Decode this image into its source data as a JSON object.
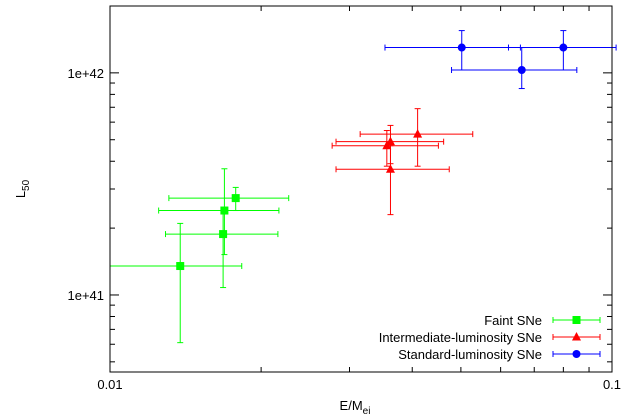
{
  "chart_data": {
    "type": "scatter",
    "x_scale": "log",
    "y_scale": "log",
    "xlim": [
      0.01,
      0.1
    ],
    "ylim": [
      4.5e+40,
      2e+42
    ],
    "x_ticks": [
      {
        "value": 0.01,
        "label": "0.01"
      },
      {
        "value": 0.1,
        "label": "0.1"
      }
    ],
    "y_ticks": [
      {
        "value": 1e+41,
        "label": "1e+41"
      },
      {
        "value": 1e+42,
        "label": "1e+42"
      }
    ],
    "xlabel": {
      "main": "E/M",
      "sub": "ei"
    },
    "ylabel": {
      "main": "L",
      "sub": "50"
    },
    "grid": false,
    "legend_position": "bottom-right",
    "series": [
      {
        "name": "Faint SNe",
        "color": "#00ff00",
        "marker": "square",
        "points": [
          {
            "x": 0.0138,
            "y": 1.35e+41,
            "x_lo": 0.01,
            "x_hi": 0.0183,
            "y_lo": 6.1e+40,
            "y_hi": 2.1e+41
          },
          {
            "x": 0.0168,
            "y": 1.88e+41,
            "x_lo": 0.0129,
            "x_hi": 0.0216,
            "y_lo": 1.08e+41,
            "y_hi": 2.4e+41
          },
          {
            "x": 0.0169,
            "y": 2.4e+41,
            "x_lo": 0.0125,
            "x_hi": 0.0217,
            "y_lo": 1.52e+41,
            "y_hi": 3.7e+41
          },
          {
            "x": 0.0178,
            "y": 2.73e+41,
            "x_lo": 0.0131,
            "x_hi": 0.0227,
            "y_lo": 2.4e+41,
            "y_hi": 3.05e+41
          }
        ]
      },
      {
        "name": "Intermediate-luminosity SNe",
        "color": "#ff0000",
        "marker": "triangle",
        "points": [
          {
            "x": 0.0356,
            "y": 4.7e+41,
            "x_lo": 0.0277,
            "x_hi": 0.0451,
            "y_lo": 3.8e+41,
            "y_hi": 5.5e+41
          },
          {
            "x": 0.0362,
            "y": 4.9e+41,
            "x_lo": 0.0282,
            "x_hi": 0.0462,
            "y_lo": 3.9e+41,
            "y_hi": 5.8e+41
          },
          {
            "x": 0.0362,
            "y": 3.68e+41,
            "x_lo": 0.0282,
            "x_hi": 0.0474,
            "y_lo": 2.3e+41,
            "y_hi": 4.7e+41
          },
          {
            "x": 0.041,
            "y": 5.3e+41,
            "x_lo": 0.0315,
            "x_hi": 0.0528,
            "y_lo": 3.8e+41,
            "y_hi": 6.9e+41
          }
        ]
      },
      {
        "name": "Standard-luminosity SNe",
        "color": "#0000ff",
        "marker": "circle",
        "points": [
          {
            "x": 0.0502,
            "y": 1.3e+42,
            "x_lo": 0.0353,
            "x_hi": 0.0657,
            "y_lo": 1.03e+42,
            "y_hi": 1.55e+42
          },
          {
            "x": 0.0661,
            "y": 1.03e+42,
            "x_lo": 0.0479,
            "x_hi": 0.0851,
            "y_lo": 8.5e+41,
            "y_hi": 1.3e+42
          },
          {
            "x": 0.08,
            "y": 1.3e+42,
            "x_lo": 0.0622,
            "x_hi": 0.1019,
            "y_lo": 1.03e+42,
            "y_hi": 1.55e+42
          }
        ]
      }
    ]
  }
}
